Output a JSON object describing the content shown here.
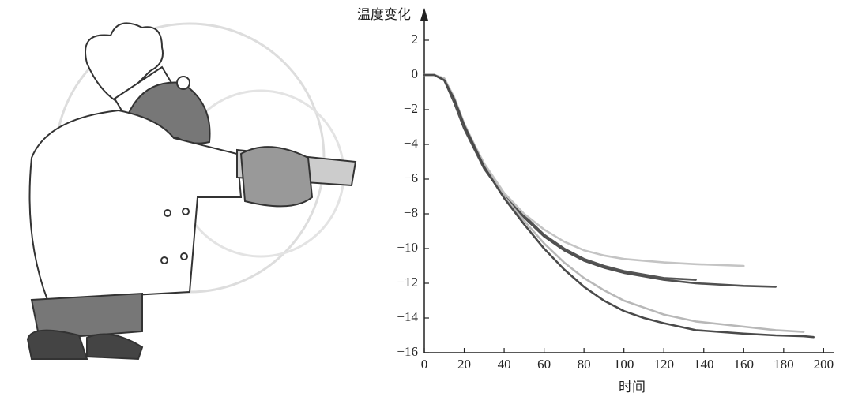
{
  "chart_data": {
    "type": "line",
    "y_label": "温度变化",
    "x_label": "时间",
    "x": [
      0,
      5,
      10,
      15,
      20,
      30,
      40,
      50,
      60,
      70,
      80,
      90,
      100,
      110,
      120,
      136,
      160,
      176,
      190,
      195
    ],
    "series": [
      {
        "color": "#555555",
        "values": [
          0,
          0,
          -0.3,
          -1.5,
          -3,
          -5.2,
          -6.9,
          -8.1,
          -9.2,
          -10,
          -10.6,
          -11,
          -11.3,
          -11.5,
          -11.7,
          -11.8,
          null,
          null,
          null,
          null
        ]
      },
      {
        "color": "#505050",
        "values": [
          0,
          0,
          -0.3,
          -1.6,
          -3.1,
          -5.4,
          -7,
          -8.2,
          -9.3,
          -10.1,
          -10.7,
          -11.1,
          -11.4,
          -11.6,
          -11.8,
          -12,
          -12.15,
          -12.2,
          null,
          null
        ]
      },
      {
        "color": "#c4c4c4",
        "values": [
          0,
          0,
          -0.2,
          -1.4,
          -2.9,
          -5.1,
          -6.8,
          -8,
          -8.9,
          -9.6,
          -10.1,
          -10.4,
          -10.6,
          -10.7,
          -10.8,
          -10.9,
          -11,
          null,
          null,
          null
        ]
      },
      {
        "color": "#b8b8b8",
        "values": [
          0,
          0,
          -0.2,
          -1.3,
          -2.8,
          -5.2,
          -7,
          -8.4,
          -9.7,
          -10.8,
          -11.7,
          -12.4,
          -13,
          -13.4,
          -13.8,
          -14.2,
          -14.5,
          -14.7,
          -14.8,
          null
        ]
      },
      {
        "color": "#4a4a4a",
        "values": [
          0,
          0,
          -0.3,
          -1.4,
          -2.9,
          -5.3,
          -7.1,
          -8.6,
          -10,
          -11.2,
          -12.2,
          -13,
          -13.6,
          -14,
          -14.3,
          -14.7,
          -14.9,
          -15,
          -15.05,
          -15.1
        ]
      }
    ],
    "xlim": [
      0,
      205
    ],
    "xticks": [
      0,
      20,
      40,
      60,
      80,
      100,
      120,
      140,
      160,
      180,
      200
    ],
    "ylim": [
      -16,
      3.5
    ],
    "yticks": [
      2,
      0,
      {
        "value": -2,
        "label": "−2"
      },
      {
        "value": -4,
        "label": "−4"
      },
      {
        "value": -6,
        "label": "−6"
      },
      {
        "value": -8,
        "label": "−8"
      },
      {
        "value": -10,
        "label": "−10"
      },
      {
        "value": -12,
        "label": "−12"
      },
      {
        "value": -14,
        "label": "−14"
      },
      {
        "value": -16,
        "label": "−16"
      }
    ],
    "grid": false
  }
}
